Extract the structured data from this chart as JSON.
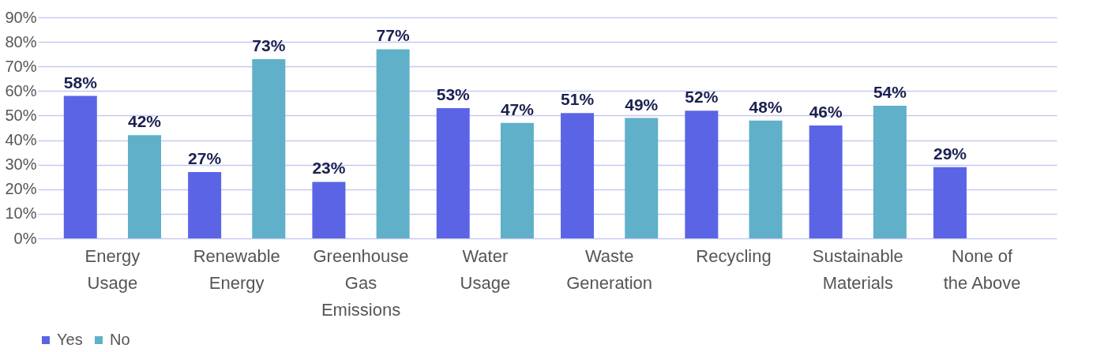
{
  "chart_data": {
    "type": "bar",
    "categories": [
      "Energy Usage",
      "Renewable Energy",
      "Greenhouse Gas Emissions",
      "Water Usage",
      "Waste Generation",
      "Recycling",
      "Sustainable Materials",
      "None of the Above"
    ],
    "series": [
      {
        "name": "Yes",
        "color": "#5c64e6",
        "values": [
          58,
          27,
          23,
          53,
          51,
          52,
          46,
          29
        ],
        "value_labels": [
          "58%",
          "27%",
          "23%",
          "53%",
          "51%",
          "52%",
          "46%",
          "29%"
        ]
      },
      {
        "name": "No",
        "color": "#5fb0c8",
        "values": [
          42,
          73,
          77,
          47,
          49,
          48,
          54,
          null
        ],
        "value_labels": [
          "42%",
          "73%",
          "77%",
          "47%",
          "49%",
          "48%",
          "54%",
          null
        ]
      }
    ],
    "ylim": [
      0,
      90
    ],
    "yticks": [
      {
        "value": 0,
        "label": "0%"
      },
      {
        "value": 10,
        "label": "10%"
      },
      {
        "value": 20,
        "label": "20%"
      },
      {
        "value": 30,
        "label": "30%"
      },
      {
        "value": 40,
        "label": "40%"
      },
      {
        "value": 50,
        "label": "50%"
      },
      {
        "value": 60,
        "label": "60%"
      },
      {
        "value": 70,
        "label": "70%"
      },
      {
        "value": 80,
        "label": "80%"
      },
      {
        "value": 90,
        "label": "90%"
      }
    ],
    "grid": true,
    "legend": "bottom"
  }
}
